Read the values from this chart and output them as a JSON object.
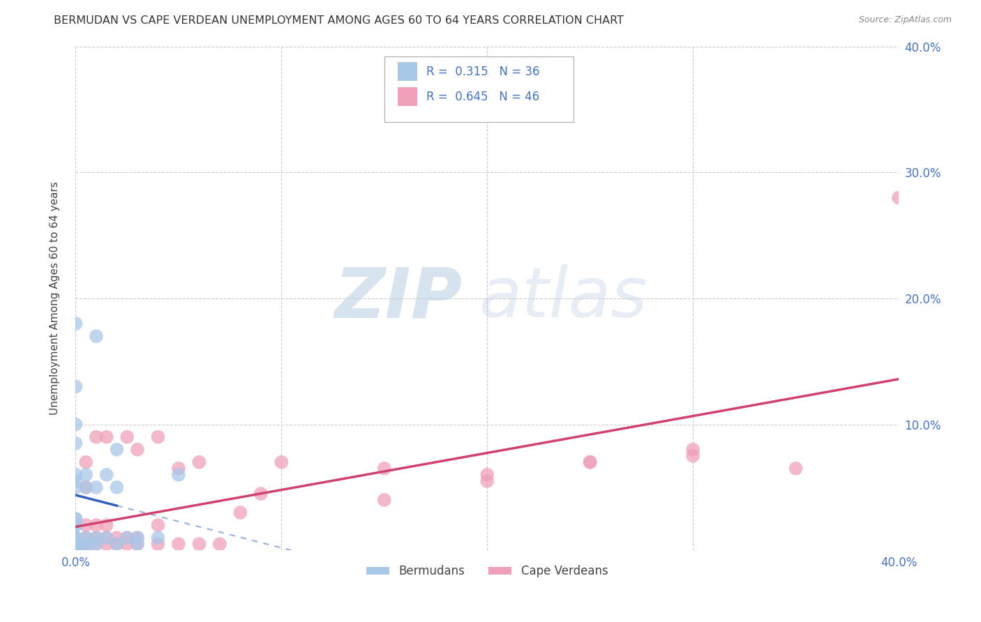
{
  "title": "BERMUDAN VS CAPE VERDEAN UNEMPLOYMENT AMONG AGES 60 TO 64 YEARS CORRELATION CHART",
  "source": "Source: ZipAtlas.com",
  "ylabel": "Unemployment Among Ages 60 to 64 years",
  "xlim": [
    0.0,
    0.4
  ],
  "ylim": [
    0.0,
    0.4
  ],
  "bermudans": {
    "R": 0.315,
    "N": 36,
    "color": "#a8c8e8",
    "line_color": "#3060c0",
    "x": [
      0.0,
      0.0,
      0.0,
      0.0,
      0.0,
      0.0,
      0.0,
      0.0,
      0.0,
      0.0,
      0.0,
      0.0,
      0.0,
      0.0,
      0.0,
      0.0,
      0.0,
      0.005,
      0.005,
      0.005,
      0.005,
      0.005,
      0.01,
      0.01,
      0.01,
      0.01,
      0.015,
      0.015,
      0.02,
      0.02,
      0.02,
      0.025,
      0.03,
      0.03,
      0.04,
      0.05
    ],
    "y": [
      0.0,
      0.0,
      0.005,
      0.005,
      0.01,
      0.01,
      0.02,
      0.02,
      0.025,
      0.025,
      0.05,
      0.055,
      0.06,
      0.085,
      0.1,
      0.13,
      0.18,
      0.0,
      0.005,
      0.01,
      0.05,
      0.06,
      0.005,
      0.01,
      0.05,
      0.17,
      0.01,
      0.06,
      0.005,
      0.05,
      0.08,
      0.01,
      0.005,
      0.01,
      0.01,
      0.06
    ]
  },
  "cape_verdeans": {
    "R": 0.645,
    "N": 46,
    "color": "#f0a0b8",
    "line_color": "#d04070",
    "x": [
      0.0,
      0.0,
      0.0,
      0.005,
      0.005,
      0.005,
      0.005,
      0.005,
      0.005,
      0.01,
      0.01,
      0.01,
      0.01,
      0.015,
      0.015,
      0.015,
      0.015,
      0.02,
      0.02,
      0.025,
      0.025,
      0.025,
      0.03,
      0.03,
      0.03,
      0.04,
      0.04,
      0.04,
      0.05,
      0.05,
      0.06,
      0.06,
      0.07,
      0.08,
      0.09,
      0.1,
      0.15,
      0.15,
      0.2,
      0.2,
      0.25,
      0.25,
      0.3,
      0.3,
      0.35,
      0.4
    ],
    "y": [
      0.0,
      0.005,
      0.01,
      0.0,
      0.005,
      0.01,
      0.02,
      0.05,
      0.07,
      0.005,
      0.01,
      0.02,
      0.09,
      0.005,
      0.01,
      0.02,
      0.09,
      0.005,
      0.01,
      0.005,
      0.01,
      0.09,
      0.005,
      0.01,
      0.08,
      0.005,
      0.02,
      0.09,
      0.005,
      0.065,
      0.005,
      0.07,
      0.005,
      0.03,
      0.045,
      0.07,
      0.04,
      0.065,
      0.06,
      0.055,
      0.07,
      0.07,
      0.075,
      0.08,
      0.065,
      0.28
    ]
  },
  "watermark_zip": "ZIP",
  "watermark_atlas": "atlas",
  "background_color": "#ffffff",
  "grid_color": "#cccccc",
  "title_color": "#333333",
  "axis_label_color": "#444444",
  "tick_label_color": "#4472c4",
  "source_color": "#888888"
}
